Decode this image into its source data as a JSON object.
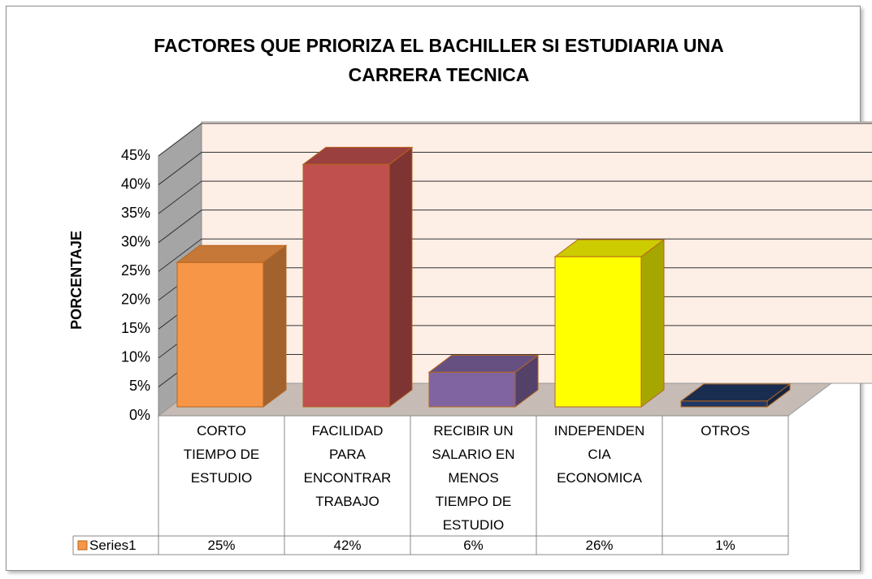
{
  "chart_data": {
    "type": "bar3d",
    "title": "FACTORES QUE PRIORIZA EL BACHILLER  SI ESTUDIARIA UNA CARRERA TECNICA",
    "ylabel": "PORCENTAJE",
    "categories": [
      "CORTO TIEMPO DE ESTUDIO",
      "FACILIDAD PARA ENCONTRAR TRABAJO",
      "RECIBIR UN SALARIO EN MENOS TIEMPO DE ESTUDIO",
      "INDEPENDENCIA ECONOMICA",
      "OTROS"
    ],
    "series": [
      {
        "name": "Series1",
        "color": "#f79646",
        "values": [
          25,
          42,
          6,
          26,
          1
        ],
        "value_labels": [
          "25%",
          "42%",
          "6%",
          "26%",
          "1%"
        ]
      }
    ],
    "colors": [
      "#f79646",
      "#c0504d",
      "#8064a2",
      "#ffff00",
      "#1f3864"
    ],
    "ylim": [
      0,
      45
    ],
    "yticks": [
      {
        "value": 0,
        "label": "0%"
      },
      {
        "value": 5,
        "label": "5%"
      },
      {
        "value": 10,
        "label": "10%"
      },
      {
        "value": 15,
        "label": "15%"
      },
      {
        "value": 20,
        "label": "20%"
      },
      {
        "value": 25,
        "label": "25%"
      },
      {
        "value": 30,
        "label": "30%"
      },
      {
        "value": 35,
        "label": "35%"
      },
      {
        "value": 40,
        "label": "40%"
      },
      {
        "value": 45,
        "label": "45%"
      }
    ],
    "grid": true
  }
}
